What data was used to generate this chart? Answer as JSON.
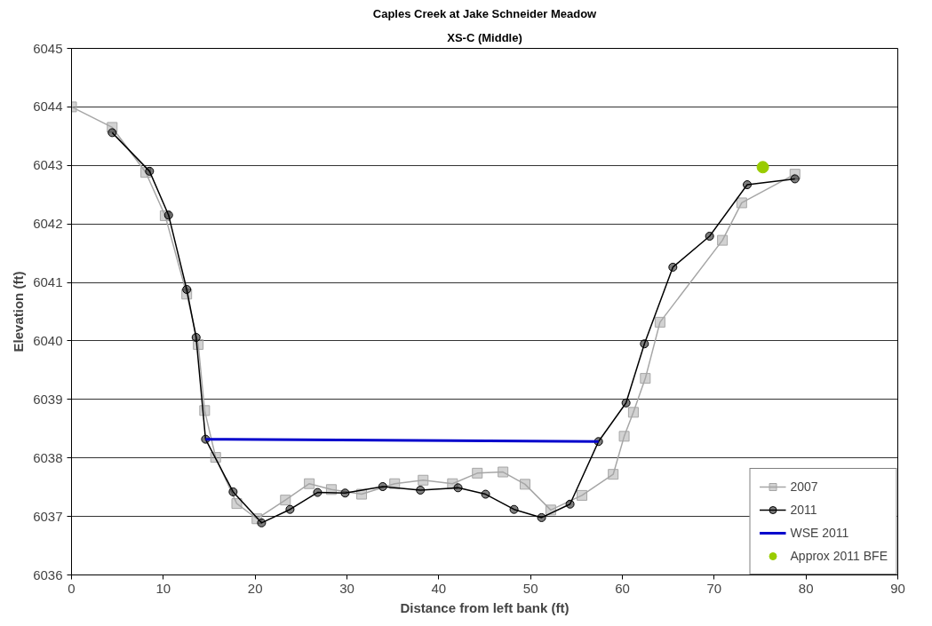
{
  "chart_data": {
    "type": "line",
    "title": "Caples Creek at Jake Schneider Meadow",
    "subtitle": "XS-C (Middle)",
    "xlabel": "Distance from left bank (ft)",
    "ylabel": "Elevation (ft)",
    "xlim": [
      0,
      90
    ],
    "xticks": [
      0,
      10,
      20,
      30,
      40,
      50,
      60,
      70,
      80,
      90
    ],
    "ylim": [
      6036,
      6045
    ],
    "yticks": [
      6036,
      6037,
      6038,
      6039,
      6040,
      6041,
      6042,
      6043,
      6044,
      6045
    ],
    "grid": "y",
    "legend": "bottom right",
    "line_style": "solid",
    "series": [
      {
        "name": "2007",
        "color": "#a6a6a6",
        "marker": "square",
        "x": [
          0,
          4.43,
          8.09,
          10.2,
          12.55,
          13.8,
          14.5,
          15.7,
          18.0,
          20.2,
          23.3,
          25.9,
          28.3,
          31.6,
          35.2,
          38.3,
          41.5,
          44.2,
          47.0,
          49.4,
          52.2,
          55.6,
          59.0,
          60.2,
          61.2,
          62.5,
          64.1,
          70.9,
          73.0,
          78.8
        ],
        "values": [
          6044,
          6043.65,
          6042.88,
          6042.14,
          6040.8,
          6039.94,
          6038.81,
          6038.01,
          6037.22,
          6036.96,
          6037.28,
          6037.56,
          6037.46,
          6037.38,
          6037.56,
          6037.62,
          6037.56,
          6037.74,
          6037.76,
          6037.55,
          6037.11,
          6037.36,
          6037.72,
          6038.37,
          6038.78,
          6039.36,
          6040.32,
          6041.72,
          6042.36,
          6042.85
        ]
      },
      {
        "name": "2011",
        "color": "#000000",
        "marker": "circle",
        "x": [
          4.43,
          8.5,
          10.57,
          12.55,
          13.57,
          14.6,
          17.6,
          20.7,
          23.8,
          26.8,
          29.8,
          33.9,
          38.0,
          42.1,
          45.1,
          48.2,
          51.2,
          54.3,
          57.4,
          60.4,
          62.4,
          65.5,
          69.5,
          73.6,
          78.8
        ],
        "values": [
          6043.56,
          6042.9,
          6042.15,
          6040.88,
          6040.06,
          6038.32,
          6037.42,
          6036.89,
          6037.12,
          6037.41,
          6037.4,
          6037.51,
          6037.45,
          6037.49,
          6037.38,
          6037.12,
          6036.98,
          6037.21,
          6038.28,
          6038.94,
          6039.95,
          6041.26,
          6041.79,
          6042.67,
          6042.77
        ]
      },
      {
        "name": "WSE 2011",
        "color": "#0000cc",
        "marker": "none",
        "x": [
          14.6,
          57.4
        ],
        "values": [
          6038.32,
          6038.28
        ]
      },
      {
        "name": "Approx 2011 BFE",
        "type": "scatter",
        "color": "#99cc00",
        "marker": "circle",
        "x": [
          75.3
        ],
        "values": [
          6042.97
        ]
      }
    ]
  }
}
